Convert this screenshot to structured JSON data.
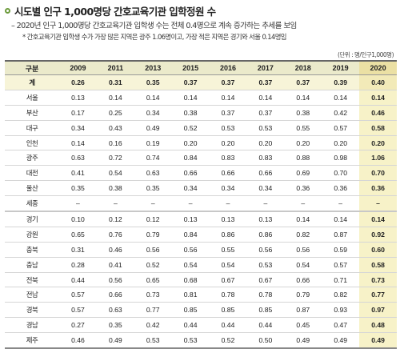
{
  "title": "시도별 인구 1,000명당 간호교육기관 입학정원 수",
  "subtitle": "– 2020년 인구 1,000명당 간호교육기관 입학생 수는 전체 0.4명으로 계속 증가하는 추세를 보임",
  "note": "* 간호교육기관 입학생 수가 가장 많은 지역은 광주 1.06명이고, 가장 적은 지역은 경기와 서울 0.14명임",
  "unit": "(단위 : 명/인구1,000명)",
  "accent_color": "#6b9a3a",
  "header": [
    "구분",
    "2009",
    "2011",
    "2013",
    "2015",
    "2016",
    "2017",
    "2018",
    "2019",
    "2020"
  ],
  "rows": [
    [
      "계",
      "0.26",
      "0.31",
      "0.35",
      "0.37",
      "0.37",
      "0.37",
      "0.37",
      "0.39",
      "0.40"
    ],
    [
      "서울",
      "0.13",
      "0.14",
      "0.14",
      "0.14",
      "0.14",
      "0.14",
      "0.14",
      "0.14",
      "0.14"
    ],
    [
      "부산",
      "0.17",
      "0.25",
      "0.34",
      "0.38",
      "0.37",
      "0.37",
      "0.38",
      "0.42",
      "0.46"
    ],
    [
      "대구",
      "0.34",
      "0.43",
      "0.49",
      "0.52",
      "0.53",
      "0.53",
      "0.55",
      "0.57",
      "0.58"
    ],
    [
      "인천",
      "0.14",
      "0.16",
      "0.19",
      "0.20",
      "0.20",
      "0.20",
      "0.20",
      "0.20",
      "0.20"
    ],
    [
      "광주",
      "0.63",
      "0.72",
      "0.74",
      "0.84",
      "0.83",
      "0.83",
      "0.88",
      "0.98",
      "1.06"
    ],
    [
      "대전",
      "0.41",
      "0.54",
      "0.63",
      "0.66",
      "0.66",
      "0.66",
      "0.69",
      "0.70",
      "0.70"
    ],
    [
      "울산",
      "0.35",
      "0.38",
      "0.35",
      "0.34",
      "0.34",
      "0.34",
      "0.36",
      "0.36",
      "0.36"
    ],
    [
      "세종",
      "–",
      "–",
      "–",
      "–",
      "–",
      "–",
      "–",
      "–",
      "–"
    ],
    [
      "경기",
      "0.10",
      "0.12",
      "0.12",
      "0.13",
      "0.13",
      "0.13",
      "0.14",
      "0.14",
      "0.14"
    ],
    [
      "강원",
      "0.65",
      "0.76",
      "0.79",
      "0.84",
      "0.86",
      "0.86",
      "0.82",
      "0.87",
      "0.92"
    ],
    [
      "충북",
      "0.31",
      "0.46",
      "0.56",
      "0.56",
      "0.55",
      "0.56",
      "0.56",
      "0.59",
      "0.60"
    ],
    [
      "충남",
      "0.28",
      "0.41",
      "0.52",
      "0.54",
      "0.54",
      "0.53",
      "0.54",
      "0.57",
      "0.58"
    ],
    [
      "전북",
      "0.44",
      "0.56",
      "0.65",
      "0.68",
      "0.67",
      "0.67",
      "0.66",
      "0.71",
      "0.73"
    ],
    [
      "전남",
      "0.57",
      "0.66",
      "0.73",
      "0.81",
      "0.78",
      "0.78",
      "0.79",
      "0.82",
      "0.77"
    ],
    [
      "경북",
      "0.57",
      "0.63",
      "0.77",
      "0.85",
      "0.85",
      "0.85",
      "0.87",
      "0.93",
      "0.97"
    ],
    [
      "경남",
      "0.27",
      "0.35",
      "0.42",
      "0.44",
      "0.44",
      "0.44",
      "0.45",
      "0.47",
      "0.48"
    ],
    [
      "제주",
      "0.46",
      "0.49",
      "0.53",
      "0.53",
      "0.52",
      "0.50",
      "0.49",
      "0.49",
      "0.49"
    ]
  ]
}
